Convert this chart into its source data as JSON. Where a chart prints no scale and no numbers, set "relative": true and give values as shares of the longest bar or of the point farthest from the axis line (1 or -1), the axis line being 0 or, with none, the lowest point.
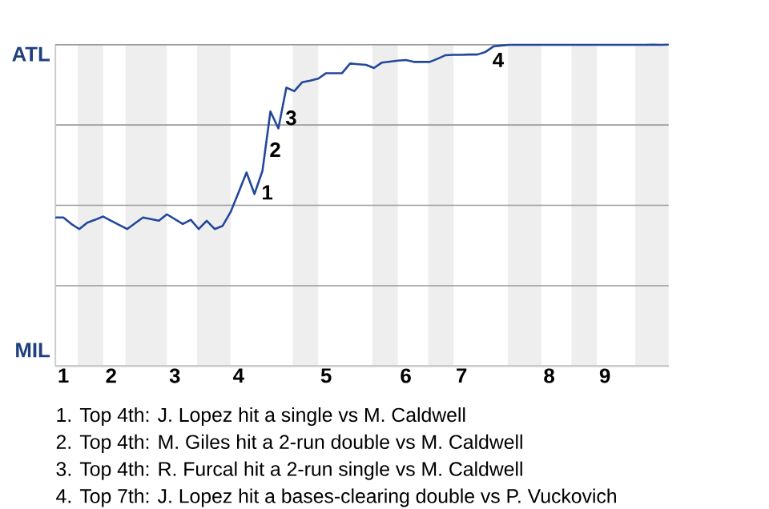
{
  "chart_data": {
    "type": "line",
    "relative": true,
    "categories": [
      null,
      "1",
      null,
      null,
      null,
      null,
      null,
      "2",
      null,
      null,
      null,
      null,
      null,
      null,
      null,
      "3",
      null,
      null,
      null,
      null,
      null,
      null,
      null,
      "4",
      null,
      null,
      null,
      null,
      null,
      null,
      null,
      null,
      null,
      null,
      "5",
      null,
      null,
      null,
      null,
      null,
      null,
      null,
      null,
      null,
      "6",
      null,
      null,
      null,
      null,
      null,
      null,
      "7",
      null,
      null,
      null,
      null,
      null,
      null,
      null,
      null,
      null,
      null,
      "8",
      null,
      null,
      null,
      null,
      null,
      null,
      "9",
      null,
      null,
      null,
      null,
      null,
      null,
      null,
      null
    ],
    "series": [
      {
        "color": "#22479b",
        "values": [
          0.462,
          0.462,
          0.442,
          0.426,
          0.446,
          0.455,
          0.465,
          0.452,
          0.439,
          0.426,
          0.444,
          0.462,
          0.457,
          0.452,
          0.472,
          0.457,
          0.442,
          0.455,
          0.426,
          0.452,
          0.426,
          0.436,
          0.479,
          0.54,
          0.602,
          0.535,
          0.607,
          0.792,
          0.739,
          0.866,
          0.855,
          0.883,
          0.888,
          0.894,
          0.911,
          0.911,
          0.911,
          0.941,
          0.939,
          0.937,
          0.927,
          0.944,
          0.947,
          0.95,
          0.952,
          0.946,
          0.946,
          0.946,
          0.956,
          0.967,
          0.968,
          0.968,
          0.969,
          0.969,
          0.977,
          0.994,
          0.997,
          0.999,
          0.999,
          0.999,
          0.999,
          0.999,
          0.999,
          0.999,
          0.999,
          0.999,
          0.999,
          0.999,
          0.999,
          0.999,
          0.999,
          0.999,
          0.999,
          0.999,
          0.999,
          1,
          0.999,
          1
        ]
      }
    ],
    "grid": "y",
    "annotations": [
      "ATL",
      "MIL",
      "1",
      "2",
      "3",
      "4",
      "1. Top 4th: J. Lopez hit a single vs M. Caldwell",
      "2. Top 4th: M. Giles hit a 2-run double vs M. Caldwell",
      "3. Top 4th: R. Furcal hit a 2-run single vs M. Caldwell",
      "4. Top 7th: J. Lopez hit a bases-clearing double vs P. Vuckovich"
    ]
  }
}
